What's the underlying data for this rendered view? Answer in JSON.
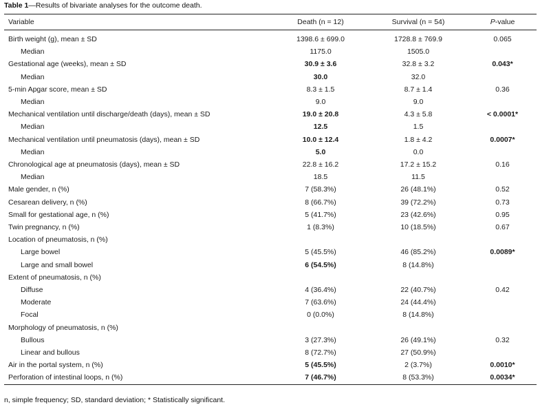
{
  "caption": {
    "label": "Table 1",
    "text": "—Results of bivariate analyses for the outcome death."
  },
  "headers": {
    "variable": "Variable",
    "death": "Death (n = 12)",
    "survival": "Survival (n = 54)",
    "p_italic": "P",
    "p_rest": "-value"
  },
  "rows": [
    {
      "label": "Birth weight (g), mean ± SD",
      "death": "1398.6 ± 699.0",
      "survival": "1728.8 ± 769.9",
      "p": "0.065"
    },
    {
      "label": "Median",
      "death": "1175.0",
      "survival": "1505.0",
      "p": ""
    },
    {
      "label": "Gestational age (weeks), mean ± SD",
      "death": "30.9 ± 3.6",
      "survival": "32.8 ± 3.2",
      "p": "0.043*"
    },
    {
      "label": "Median",
      "death": "30.0",
      "survival": "32.0",
      "p": ""
    },
    {
      "label": "5-min Apgar score, mean ± SD",
      "death": "8.3 ± 1.5",
      "survival": "8.7 ± 1.4",
      "p": "0.36"
    },
    {
      "label": "Median",
      "death": "9.0",
      "survival": "9.0",
      "p": ""
    },
    {
      "label": "Mechanical ventilation until discharge/death (days), mean ± SD",
      "death": "19.0 ± 20.8",
      "survival": "4.3 ± 5.8",
      "p": "< 0.0001*"
    },
    {
      "label": "Median",
      "death": "12.5",
      "survival": "1.5",
      "p": ""
    },
    {
      "label": "Mechanical ventilation until pneumatosis (days), mean ± SD",
      "death": "10.0 ± 12.4",
      "survival": "1.8 ± 4.2",
      "p": "0.0007*"
    },
    {
      "label": "Median",
      "death": "5.0",
      "survival": "0.0",
      "p": ""
    },
    {
      "label": "Chronological age at pneumatosis (days), mean ± SD",
      "death": "22.8 ± 16.2",
      "survival": "17.2 ± 15.2",
      "p": "0.16"
    },
    {
      "label": "Median",
      "death": "18.5",
      "survival": "11.5",
      "p": ""
    },
    {
      "label": "Male gender, n (%)",
      "death": "7  (58.3%)",
      "survival": "26  (48.1%)",
      "p": "0.52"
    },
    {
      "label": "Cesarean delivery, n (%)",
      "death": "8  (66.7%)",
      "survival": "39  (72.2%)",
      "p": "0.73"
    },
    {
      "label": "Small for gestational age, n (%)",
      "death": "5  (41.7%)",
      "survival": "23  (42.6%)",
      "p": "0.95"
    },
    {
      "label": "Twin pregnancy, n (%)",
      "death": "1  (8.3%)",
      "survival": "10  (18.5%)",
      "p": "0.67"
    },
    {
      "label": "Location of pneumatosis, n (%)",
      "death": "",
      "survival": "",
      "p": ""
    },
    {
      "label": "Large bowel",
      "death": "5  (45.5%)",
      "survival": "46  (85.2%)",
      "p": "0.0089*"
    },
    {
      "label": "Large and small bowel",
      "death": "6  (54.5%)",
      "survival": "8  (14.8%)",
      "p": ""
    },
    {
      "label": "Extent of pneumatosis, n (%)",
      "death": "",
      "survival": "",
      "p": ""
    },
    {
      "label": "Diffuse",
      "death": "4  (36.4%)",
      "survival": "22  (40.7%)",
      "p": "0.42"
    },
    {
      "label": "Moderate",
      "death": "7  (63.6%)",
      "survival": "24  (44.4%)",
      "p": ""
    },
    {
      "label": "Focal",
      "death": "0  (0.0%)",
      "survival": "8  (14.8%)",
      "p": ""
    },
    {
      "label": "Morphology of pneumatosis, n (%)",
      "death": "",
      "survival": "",
      "p": ""
    },
    {
      "label": "Bullous",
      "death": "3  (27.3%)",
      "survival": "26  (49.1%)",
      "p": "0.32"
    },
    {
      "label": "Linear and bullous",
      "death": "8  (72.7%)",
      "survival": "27  (50.9%)",
      "p": ""
    },
    {
      "label": "Air in the portal system, n (%)",
      "death": "5  (45.5%)",
      "survival": "2  (3.7%)",
      "p": "0.0010*"
    },
    {
      "label": "Perforation of intestinal loops, n (%)",
      "death": "7  (46.7%)",
      "survival": "8  (53.3%)",
      "p": "0.0034*"
    }
  ],
  "footnote": "n, simple frequency; SD, standard deviation; * Statistically significant."
}
